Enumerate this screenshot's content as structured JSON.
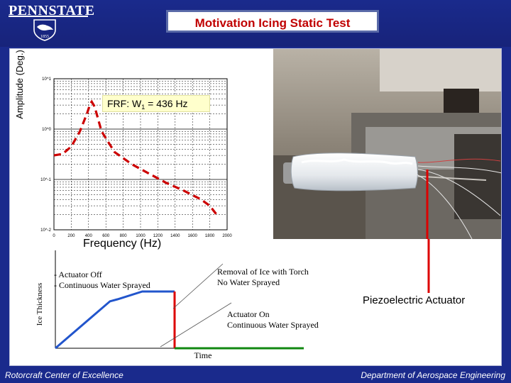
{
  "header": {
    "logo_text": "PENNSTATE",
    "logo_year": "1855",
    "title": "Motivation Icing Static Test"
  },
  "frf_plot": {
    "ylabel": "Amplitude (Deg.)",
    "xlabel": "Frequency (Hz)",
    "callout_prefix": "FRF: W",
    "callout_sub": "1",
    "callout_suffix": " = 436 Hz"
  },
  "photo": {
    "annotation": "Piezoelectric Actuator"
  },
  "thickness_plot": {
    "ylabel": "Ice Thickness",
    "xlabel": "Time",
    "legend_line1": "-   Actuator Off",
    "legend_line2": "-   Continuous Water Sprayed",
    "annotation_removal_line1": "Removal of Ice with Torch",
    "annotation_removal_line2": "No Water Sprayed",
    "annotation_on_line1": "Actuator On",
    "annotation_on_line2": "Continuous Water Sprayed"
  },
  "footer": {
    "left": "Rotorcraft Center of Excellence",
    "right": "Department of Aerospace Engineering"
  },
  "colors": {
    "slide_background": "#1a2a8c",
    "title_text": "#c00000",
    "frf_curve": "#cc0000",
    "thickness_off": "#2255cc",
    "thickness_removal": "#dd0000",
    "thickness_on": "#118811"
  },
  "chart_data": [
    {
      "type": "line",
      "scale": "log-y",
      "x_ticks": [
        "0",
        "200",
        "400",
        "600",
        "800",
        "1000",
        "1200",
        "1400",
        "1600",
        "1800",
        "2000"
      ],
      "y_ticks": [
        "10^1",
        "10^0",
        "10^-1",
        "10^-2"
      ],
      "xlim": [
        0,
        2000
      ],
      "ylim": [
        0.01,
        10
      ],
      "grid": true,
      "series": [
        {
          "style": "dashed",
          "x": [
            0,
            100,
            200,
            300,
            380,
            420,
            436,
            470,
            550,
            700,
            900,
            1100,
            1300,
            1500,
            1700,
            1800,
            1900
          ],
          "y": [
            0.3,
            0.32,
            0.45,
            0.9,
            2.0,
            3.2,
            3.5,
            2.8,
            0.9,
            0.35,
            0.2,
            0.13,
            0.085,
            0.06,
            0.04,
            0.03,
            0.018
          ]
        }
      ]
    },
    {
      "type": "line",
      "xlim": [
        0,
        100
      ],
      "ylim": [
        0,
        100
      ],
      "series": [
        {
          "style": "solid",
          "x": [
            0,
            22,
            25,
            35,
            48
          ],
          "y": [
            0,
            48,
            50,
            58,
            58
          ]
        },
        {
          "style": "solid",
          "x": [
            48,
            48
          ],
          "y": [
            58,
            0
          ]
        },
        {
          "style": "solid",
          "x": [
            48,
            100
          ],
          "y": [
            0,
            0
          ]
        }
      ]
    }
  ]
}
